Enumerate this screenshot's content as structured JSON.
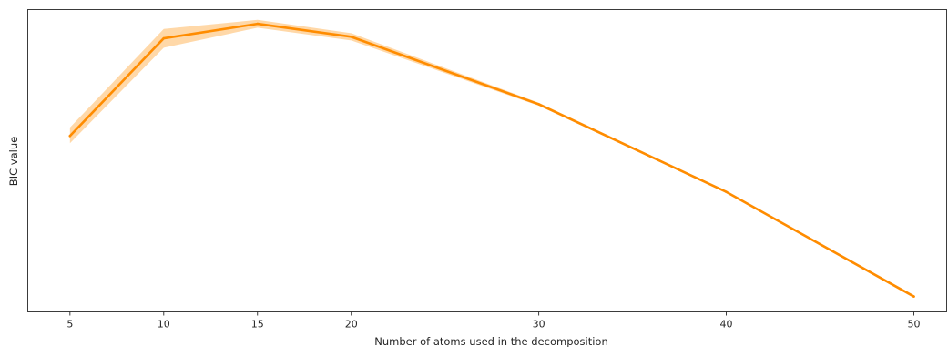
{
  "chart_data": {
    "type": "line",
    "title": "",
    "xlabel": "Number of atoms used in the decomposition",
    "ylabel": "BIC value",
    "x": [
      5,
      10,
      15,
      20,
      30,
      40,
      50
    ],
    "xticks": [
      "5",
      "10",
      "15",
      "20",
      "30",
      "40",
      "50"
    ],
    "xlim": [
      2.75,
      51.75
    ],
    "ylim": [
      0,
      100
    ],
    "y_tick_labels_shown": false,
    "grid": false,
    "legend": "none",
    "series": [
      {
        "values": [
          58.2,
          90.5,
          95.3,
          91.0,
          68.7,
          39.7,
          5.1
        ],
        "ci_lower": [
          55.8,
          87.4,
          94.0,
          89.8,
          68.2,
          39.4,
          5.0
        ],
        "ci_upper": [
          61.0,
          93.6,
          96.6,
          92.2,
          69.2,
          40.0,
          5.2
        ],
        "color": "#ff8c00",
        "band_color": "#ffd8a8"
      }
    ]
  }
}
